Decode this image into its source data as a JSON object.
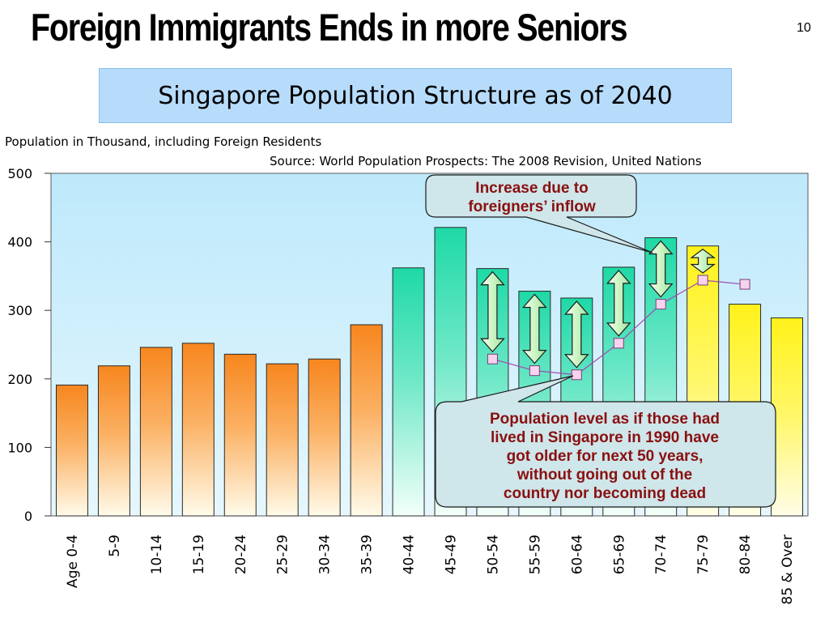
{
  "page": {
    "title": "Foreign Immigrants Ends in more Seniors",
    "slide_number": "10",
    "subtitle": "Singapore Population Structure as of 2040"
  },
  "colors": {
    "young_bar": "#f7861e",
    "middle_bar": "#1ed9a6",
    "old_bar": "#fff21a",
    "plot_bg": "#c4ecfb",
    "line": "#a04ab0",
    "callout_text": "#8a1010",
    "callout_bg": "#cfe6ea"
  },
  "chart_data": {
    "type": "bar",
    "ylabel": "Population in Thousand, including Foreign Residents",
    "source": "Source: World Population Prospects: The 2008 Revision, United Nations",
    "ylim": [
      0,
      500
    ],
    "yticks": [
      "0",
      "100",
      "200",
      "300",
      "400",
      "500"
    ],
    "categories": [
      "Age 0-4",
      "5-9",
      "10-14",
      "15-19",
      "20-24",
      "25-29",
      "30-34",
      "35-39",
      "40-44",
      "45-49",
      "50-54",
      "55-59",
      "60-64",
      "65-69",
      "70-74",
      "75-79",
      "80-84",
      "85 & Over"
    ],
    "values": [
      191,
      219,
      246,
      252,
      236,
      222,
      229,
      279,
      362,
      421,
      361,
      328,
      318,
      363,
      406,
      394,
      309,
      289
    ],
    "bar_groups": [
      "young",
      "young",
      "young",
      "young",
      "young",
      "young",
      "young",
      "young",
      "middle",
      "middle",
      "middle",
      "middle",
      "middle",
      "middle",
      "middle",
      "old",
      "old",
      "old"
    ],
    "aged_1990_line": {
      "categories": [
        "50-54",
        "55-59",
        "60-64",
        "65-69",
        "70-74",
        "75-79",
        "80-84"
      ],
      "values": [
        229,
        212,
        206,
        252,
        309,
        344,
        338
      ]
    },
    "arrow_categories": [
      "50-54",
      "55-59",
      "60-64",
      "65-69",
      "70-74",
      "75-79"
    ],
    "callouts": [
      {
        "lines": [
          "Increase due to",
          "foreigners’ inflow"
        ]
      },
      {
        "lines": [
          "Population level as if those had",
          "lived in Singapore in 1990 have",
          "got older for next 50 years,",
          "without going out of the",
          "country nor becoming dead"
        ]
      }
    ]
  }
}
